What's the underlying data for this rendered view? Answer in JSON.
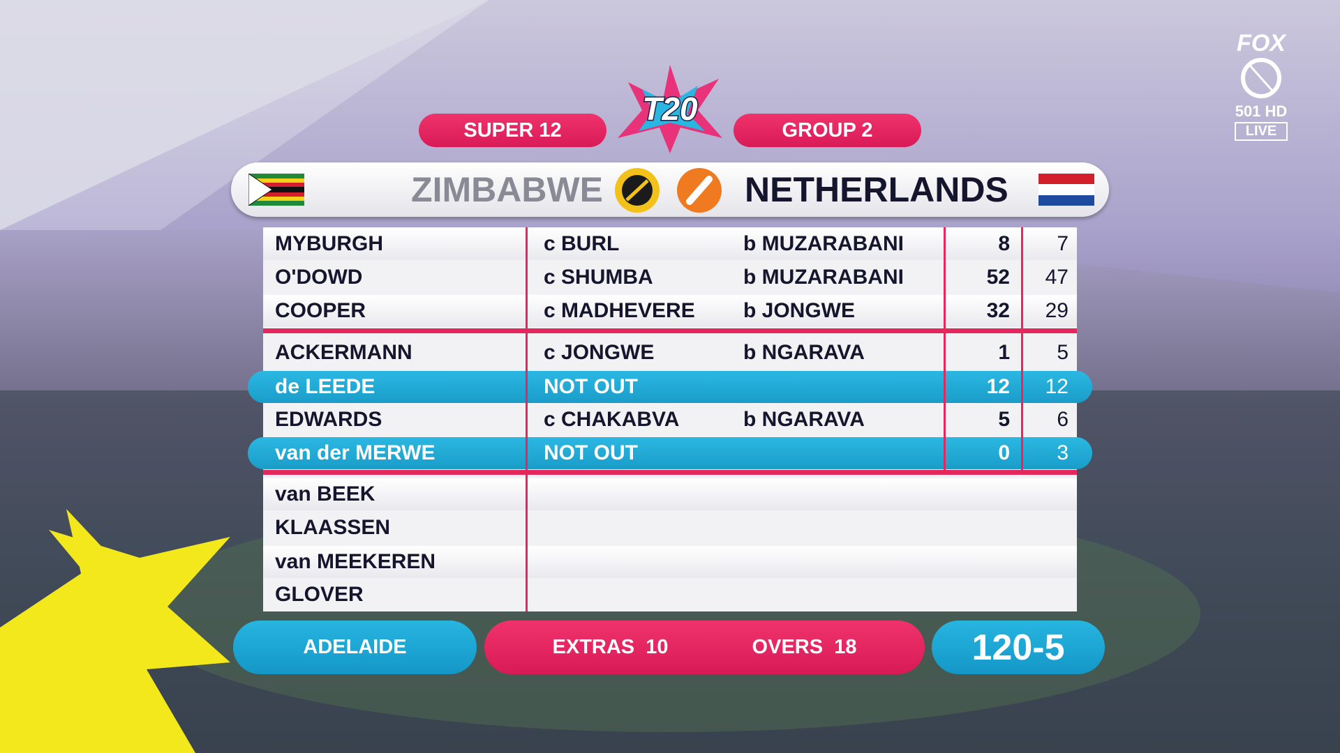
{
  "header": {
    "stage": "SUPER 12",
    "logo": "T20",
    "group": "GROUP 2"
  },
  "teams": {
    "bowling": "ZIMBABWE",
    "batting": "NETHERLANDS"
  },
  "batters": [
    {
      "name": "MYBURGH",
      "fielder": "c BURL",
      "bowler": "b MUZARABANI",
      "runs": 8,
      "balls": 7
    },
    {
      "name": "O'DOWD",
      "fielder": "c SHUMBA",
      "bowler": "b MUZARABANI",
      "runs": 52,
      "balls": 47
    },
    {
      "name": "COOPER",
      "fielder": "c MADHEVERE",
      "bowler": "b JONGWE",
      "runs": 32,
      "balls": 29
    },
    {
      "name": "ACKERMANN",
      "fielder": "c JONGWE",
      "bowler": "b NGARAVA",
      "runs": 1,
      "balls": 5
    },
    {
      "name": "de LEEDE",
      "status": "NOT OUT",
      "runs": 12,
      "balls": 12
    },
    {
      "name": "EDWARDS",
      "fielder": "c CHAKABVA",
      "bowler": "b NGARAVA",
      "runs": 5,
      "balls": 6
    },
    {
      "name": "van der MERWE",
      "status": "NOT OUT",
      "runs": 0,
      "balls": 3
    }
  ],
  "yet_to_bat": [
    "van BEEK",
    "KLAASSEN",
    "van MEEKEREN",
    "GLOVER"
  ],
  "footer": {
    "venue": "ADELAIDE",
    "extras_label": "EXTRAS",
    "extras": 10,
    "overs_label": "OVERS",
    "overs": 18,
    "score": "120-5"
  },
  "broadcaster": {
    "network": "FOX",
    "channel": "501 HD",
    "live": "LIVE"
  }
}
